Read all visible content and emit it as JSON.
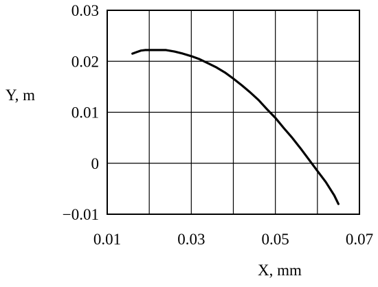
{
  "chart_data": {
    "type": "line",
    "xlabel": "X, mm",
    "ylabel": "Y, m",
    "xlim": [
      0.01,
      0.07
    ],
    "ylim": [
      -0.01,
      0.03
    ],
    "x_ticks": [
      0.01,
      0.03,
      0.05,
      0.07
    ],
    "x_tick_labels": [
      "0.01",
      "0.03",
      "0.05",
      "0.07"
    ],
    "y_ticks": [
      -0.01,
      0,
      0.01,
      0.02,
      0.03
    ],
    "y_tick_labels": [
      "−0.01",
      "0",
      "0.01",
      "0.02",
      "0.03"
    ],
    "x_grid": [
      0.01,
      0.02,
      0.03,
      0.04,
      0.05,
      0.06,
      0.07
    ],
    "y_grid": [
      -0.01,
      0,
      0.01,
      0.02,
      0.03
    ],
    "grid": true,
    "line_color": "#000000",
    "series": [
      {
        "x": [
          0.016,
          0.017,
          0.018,
          0.019,
          0.02,
          0.022,
          0.024,
          0.026,
          0.028,
          0.03,
          0.032,
          0.034,
          0.036,
          0.038,
          0.04,
          0.042,
          0.044,
          0.046,
          0.048,
          0.05,
          0.052,
          0.054,
          0.056,
          0.058,
          0.06,
          0.062,
          0.064,
          0.065
        ],
        "y": [
          0.0215,
          0.0218,
          0.0221,
          0.0222,
          0.0222,
          0.0222,
          0.0222,
          0.0219,
          0.0215,
          0.021,
          0.0204,
          0.0196,
          0.0188,
          0.0178,
          0.0166,
          0.0153,
          0.0139,
          0.0124,
          0.0106,
          0.0089,
          0.0069,
          0.005,
          0.0029,
          0.0007,
          -0.0015,
          -0.0037,
          -0.0063,
          -0.008
        ]
      }
    ]
  }
}
